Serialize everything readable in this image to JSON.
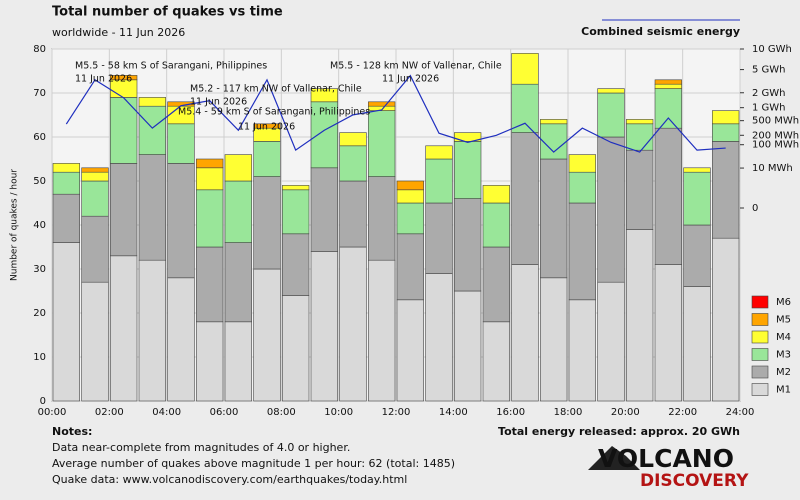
{
  "chart_data": {
    "type": "stacked_bar",
    "title": "Total number of quakes vs time",
    "subtitle": "worldwide - 11 Jun 2026",
    "ylabel": "Number of quakes / hour",
    "x": [
      0,
      1,
      2,
      3,
      4,
      5,
      6,
      7,
      8,
      9,
      10,
      11,
      12,
      13,
      14,
      15,
      16,
      17,
      18,
      19,
      20,
      21,
      22,
      23
    ],
    "xlim": [
      0,
      24
    ],
    "xticks": [
      {
        "value": 0,
        "label": "00:00"
      },
      {
        "value": 2,
        "label": "02:00"
      },
      {
        "value": 4,
        "label": "04:00"
      },
      {
        "value": 6,
        "label": "06:00"
      },
      {
        "value": 8,
        "label": "08:00"
      },
      {
        "value": 10,
        "label": "10:00"
      },
      {
        "value": 12,
        "label": "12:00"
      },
      {
        "value": 14,
        "label": "14:00"
      },
      {
        "value": 16,
        "label": "16:00"
      },
      {
        "value": 18,
        "label": "18:00"
      },
      {
        "value": 20,
        "label": "20:00"
      },
      {
        "value": 22,
        "label": "22:00"
      },
      {
        "value": 24,
        "label": "24:00"
      }
    ],
    "ylim": [
      0,
      80
    ],
    "yticks": [
      0,
      10,
      20,
      30,
      40,
      50,
      60,
      70,
      80
    ],
    "grid": true,
    "series": [
      {
        "name": "M1",
        "color": "#d9d9d9",
        "values": [
          36,
          27,
          33,
          32,
          28,
          18,
          18,
          30,
          24,
          34,
          35,
          32,
          23,
          29,
          25,
          18,
          31,
          28,
          23,
          27,
          39,
          31,
          26,
          37
        ]
      },
      {
        "name": "M2",
        "color": "#ababab",
        "values": [
          11,
          15,
          21,
          24,
          26,
          17,
          18,
          21,
          14,
          19,
          15,
          19,
          15,
          16,
          21,
          17,
          30,
          27,
          22,
          33,
          18,
          31,
          14,
          22
        ]
      },
      {
        "name": "M3",
        "color": "#99e699",
        "values": [
          5,
          8,
          15,
          11,
          9,
          13,
          14,
          8,
          10,
          15,
          8,
          15,
          7,
          10,
          13,
          10,
          11,
          8,
          7,
          10,
          6,
          9,
          12,
          4
        ]
      },
      {
        "name": "M4",
        "color": "#ffff33",
        "values": [
          2,
          2,
          4,
          2,
          4,
          5,
          6,
          3,
          1,
          3,
          3,
          1,
          3,
          3,
          2,
          4,
          7,
          1,
          4,
          1,
          1,
          1,
          1,
          3
        ]
      },
      {
        "name": "M5",
        "color": "#ffa500",
        "values": [
          0,
          1,
          1,
          0,
          1,
          2,
          0,
          1,
          0,
          0,
          0,
          1,
          2,
          0,
          0,
          0,
          0,
          0,
          0,
          0,
          0,
          1,
          0,
          0
        ]
      },
      {
        "name": "M6",
        "color": "#ff0000",
        "values": [
          0,
          0,
          0,
          0,
          0,
          0,
          0,
          0,
          0,
          0,
          0,
          0,
          0,
          0,
          0,
          0,
          0,
          0,
          0,
          0,
          0,
          0,
          0,
          0
        ]
      }
    ],
    "energy": {
      "type": "line",
      "name": "Combined seismic energy",
      "color": "#1f2fbf",
      "axis": "y2",
      "values": [
        410,
        3400,
        1600,
        320,
        1100,
        1400,
        280,
        3400,
        64,
        280,
        690,
        890,
        4000,
        230,
        120,
        200,
        430,
        54,
        320,
        120,
        54,
        580,
        64,
        76
      ]
    },
    "y2scale": "power",
    "y2lim": [
      0,
      10000
    ],
    "y2ticks": [
      {
        "value": 10000,
        "label": "10 GWh"
      },
      {
        "value": 5000,
        "label": "5 GWh"
      },
      {
        "value": 2000,
        "label": "2 GWh"
      },
      {
        "value": 1000,
        "label": "1 GWh"
      },
      {
        "value": 500,
        "label": "500 MWh"
      },
      {
        "value": 200,
        "label": "200 MWh"
      },
      {
        "value": 100,
        "label": "100 MWh"
      },
      {
        "value": 10,
        "label": "10 MWh"
      },
      0
    ],
    "annotations": [
      [
        "M5.5 - 58 km S of Sarangani, Philippines",
        "11 Jun 2026"
      ],
      [
        "M5.2 - 117 km NW of Vallenar, Chile",
        "11 Jun 2026"
      ],
      [
        "M5.4 - 59 km S of Sarangani, Philippines",
        "11 Jun 2026"
      ],
      [
        "M5.5 - 128 km NW of Vallenar, Chile",
        "11 Jun 2026"
      ]
    ]
  },
  "notes": {
    "title": "Notes:",
    "lines": [
      "Data near-complete from magnitudes of 4.0 or higher.",
      "Average number of quakes above magnitude 1 per hour: 62 (total: 1485)",
      "Quake data: www.volcanodiscovery.com/earthquakes/today.html"
    ]
  },
  "total_energy": "Total energy released: approx. 20 GWh",
  "logo": {
    "line1": "VOLCANO",
    "line2": "DISCOVERY"
  }
}
